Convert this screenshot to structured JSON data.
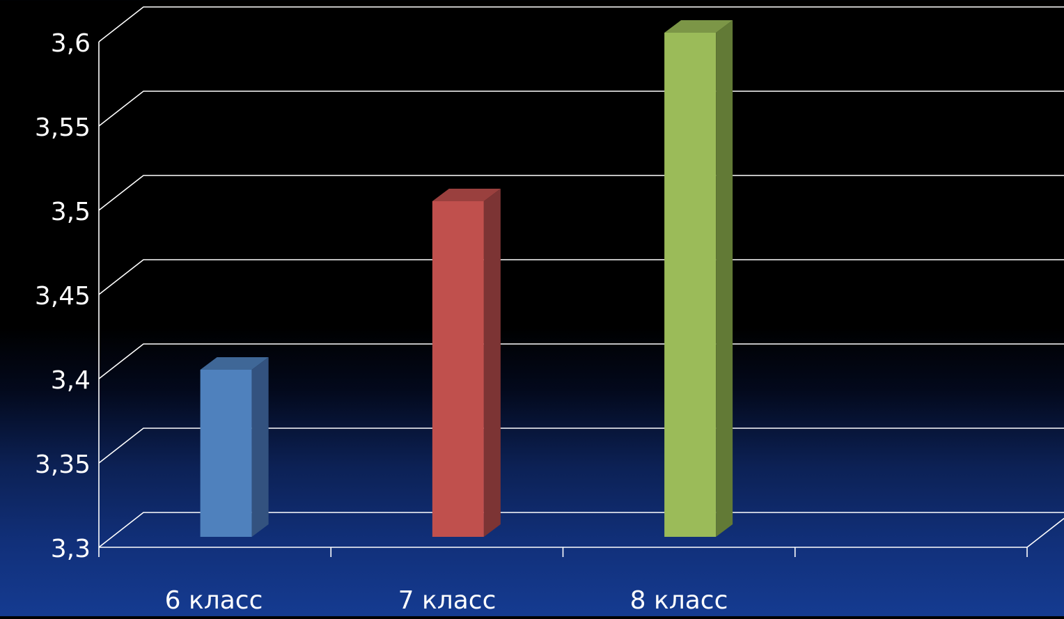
{
  "chart_data": {
    "type": "bar",
    "categories": [
      "6 класс",
      "7 класс",
      "8 класс",
      ""
    ],
    "values": [
      3.4,
      3.5,
      3.6,
      null
    ],
    "colors": {
      "bars": [
        "#4f81bd",
        "#c0504d",
        "#9bbb59"
      ],
      "bar_sides": [
        "#33527f",
        "#7c3434",
        "#627a36"
      ],
      "bar_tops": [
        "#3f6797",
        "#9a403e",
        "#7c9647"
      ],
      "gridlines": "#ffffff",
      "text": "#ffffff"
    },
    "title": "",
    "xlabel": "",
    "ylabel": "",
    "ylim": [
      3.3,
      3.6
    ],
    "y_ticks": [
      {
        "value": 3.3,
        "label": "3,3"
      },
      {
        "value": 3.35,
        "label": "3,35"
      },
      {
        "value": 3.4,
        "label": "3,4"
      },
      {
        "value": 3.45,
        "label": "3,45"
      },
      {
        "value": 3.5,
        "label": "3,5"
      },
      {
        "value": 3.55,
        "label": "3,55"
      },
      {
        "value": 3.6,
        "label": "3,6"
      }
    ],
    "grid": true,
    "style": "3d-column"
  }
}
